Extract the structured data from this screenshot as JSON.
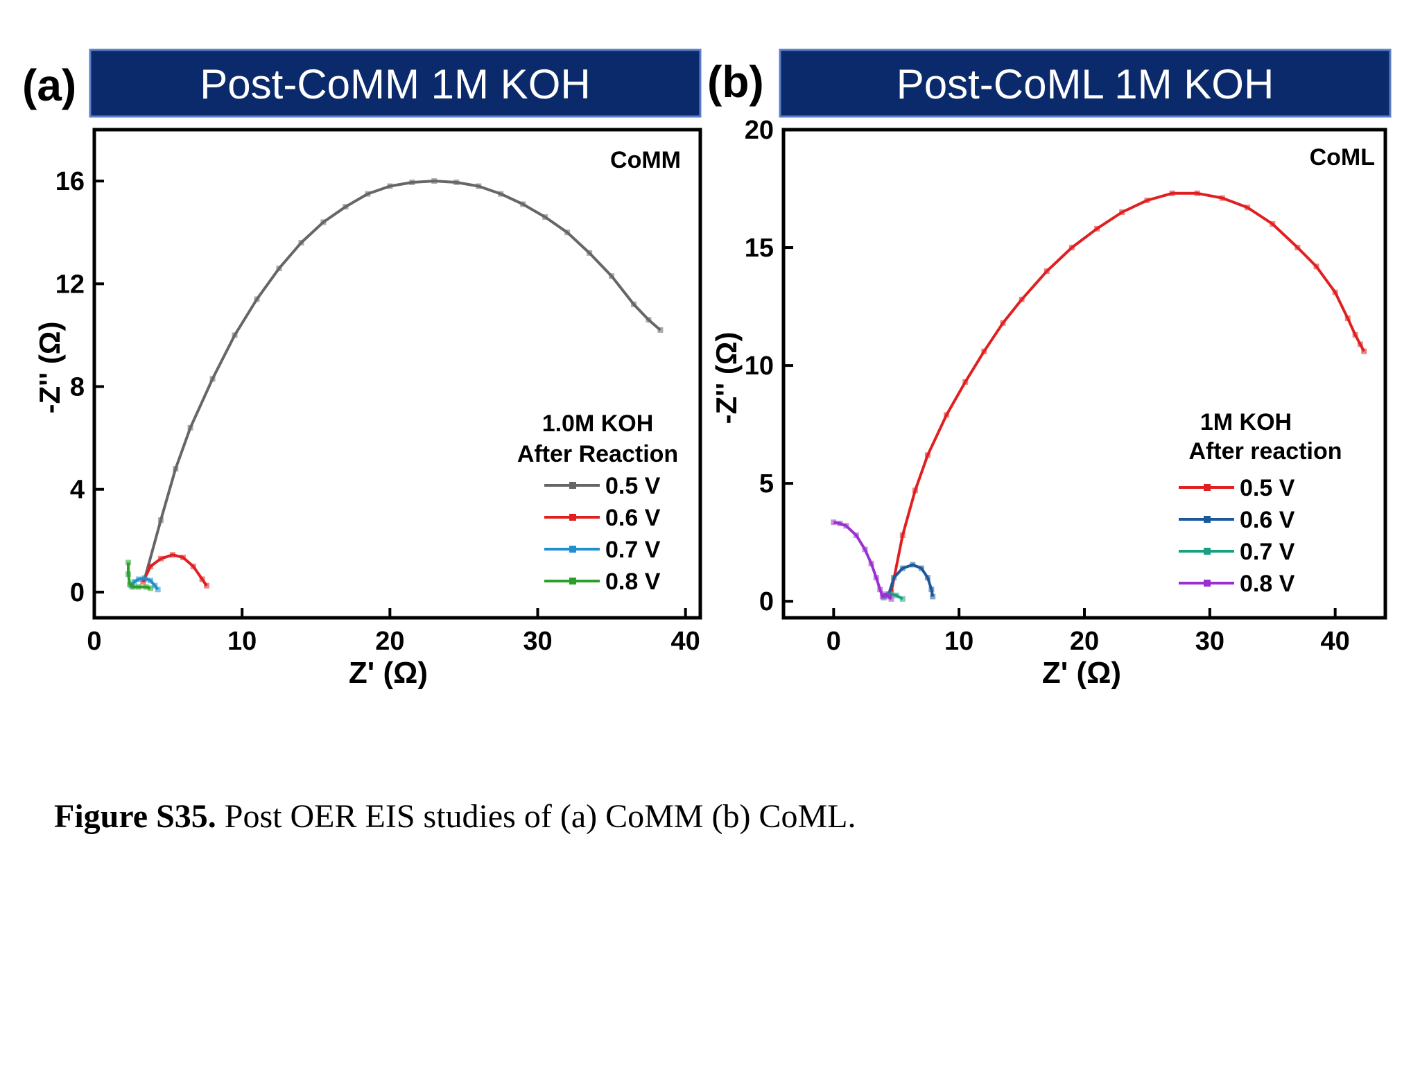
{
  "caption": {
    "label": "Figure S35.",
    "text": " Post OER EIS studies of (a) CoMM (b) CoML."
  },
  "colors": {
    "banner": "#0b2a6b",
    "banner_text": "#ffffff"
  },
  "chart_data": [
    {
      "type": "line",
      "panel_label": "(a)",
      "banner": "Post-CoMM 1M KOH",
      "corner_label": "CoMM",
      "xlabel": "Z' (Ω)",
      "ylabel": "-Z'' (Ω)",
      "xlim": [
        0,
        41
      ],
      "ylim": [
        -1,
        18
      ],
      "xticks": [
        0,
        10,
        20,
        30,
        40
      ],
      "yticks": [
        0,
        4,
        8,
        12,
        16
      ],
      "legend_title": [
        "1.0M KOH",
        "After Reaction"
      ],
      "legend_position": "lower-right",
      "series": [
        {
          "name": "0.5 V",
          "color": "#666666",
          "x": [
            3.4,
            4.5,
            5.5,
            6.5,
            8,
            9.5,
            11,
            12.5,
            14,
            15.5,
            17,
            18.5,
            20,
            21.5,
            23,
            24.5,
            26,
            27.5,
            29,
            30.5,
            32,
            33.5,
            35,
            36.5,
            37.5,
            38.3
          ],
          "y": [
            0.5,
            2.8,
            4.8,
            6.4,
            8.3,
            10.0,
            11.4,
            12.6,
            13.6,
            14.4,
            15.0,
            15.5,
            15.8,
            15.95,
            16.0,
            15.95,
            15.8,
            15.5,
            15.1,
            14.6,
            14.0,
            13.2,
            12.3,
            11.2,
            10.6,
            10.2
          ]
        },
        {
          "name": "0.6 V",
          "color": "#e02020",
          "x": [
            3.3,
            3.8,
            4.5,
            5.3,
            6.0,
            6.7,
            7.3,
            7.6
          ],
          "y": [
            0.4,
            1.0,
            1.3,
            1.45,
            1.35,
            1.0,
            0.5,
            0.25
          ]
        },
        {
          "name": "0.7 V",
          "color": "#1f8fd0",
          "x": [
            2.5,
            2.7,
            3.0,
            3.4,
            3.8,
            4.1,
            4.3
          ],
          "y": [
            0.25,
            0.4,
            0.5,
            0.55,
            0.45,
            0.25,
            0.1
          ]
        },
        {
          "name": "0.8 V",
          "color": "#2aa02a",
          "x": [
            2.3,
            2.3,
            2.4,
            2.6,
            3.0,
            3.5,
            3.8
          ],
          "y": [
            1.15,
            0.7,
            0.3,
            0.2,
            0.2,
            0.2,
            0.15
          ]
        }
      ]
    },
    {
      "type": "line",
      "panel_label": "(b)",
      "banner": "Post-CoML 1M KOH",
      "corner_label": "CoML",
      "xlabel": "Z' (Ω)",
      "ylabel": "-Z'' (Ω)",
      "xlim": [
        -4,
        44
      ],
      "ylim": [
        -0.7,
        20
      ],
      "xticks": [
        0,
        10,
        20,
        30,
        40
      ],
      "yticks": [
        0,
        5,
        10,
        15,
        20
      ],
      "legend_title": [
        "1M KOH",
        "After reaction"
      ],
      "legend_position": "lower-right",
      "series": [
        {
          "name": "0.5 V",
          "color": "#e02020",
          "x": [
            4.6,
            5.5,
            6.5,
            7.5,
            9,
            10.5,
            12,
            13.5,
            15,
            17,
            19,
            21,
            23,
            25,
            27,
            29,
            31,
            33,
            35,
            37,
            38.5,
            40,
            41,
            41.6,
            42.0,
            42.3
          ],
          "y": [
            0.4,
            2.8,
            4.7,
            6.2,
            7.9,
            9.3,
            10.6,
            11.8,
            12.8,
            14.0,
            15.0,
            15.8,
            16.5,
            17.0,
            17.3,
            17.3,
            17.1,
            16.7,
            16.0,
            15.0,
            14.2,
            13.1,
            12.0,
            11.3,
            10.9,
            10.6
          ]
        },
        {
          "name": "0.6 V",
          "color": "#1a5a9a",
          "x": [
            4.4,
            4.8,
            5.5,
            6.3,
            7.0,
            7.5,
            7.8,
            7.9
          ],
          "y": [
            0.3,
            1.0,
            1.4,
            1.55,
            1.4,
            1.0,
            0.5,
            0.2
          ]
        },
        {
          "name": "0.7 V",
          "color": "#1aa080",
          "x": [
            4.0,
            4.5,
            5.0,
            5.5
          ],
          "y": [
            0.15,
            0.3,
            0.25,
            0.1
          ]
        },
        {
          "name": "0.8 V",
          "color": "#9b30d0",
          "x": [
            0.0,
            0.5,
            1.0,
            1.8,
            2.5,
            3.0,
            3.4,
            3.7,
            3.9,
            4.1,
            4.4,
            4.6
          ],
          "y": [
            3.35,
            3.3,
            3.2,
            2.8,
            2.2,
            1.6,
            1.0,
            0.5,
            0.2,
            0.3,
            0.2,
            0.1
          ]
        }
      ]
    }
  ]
}
